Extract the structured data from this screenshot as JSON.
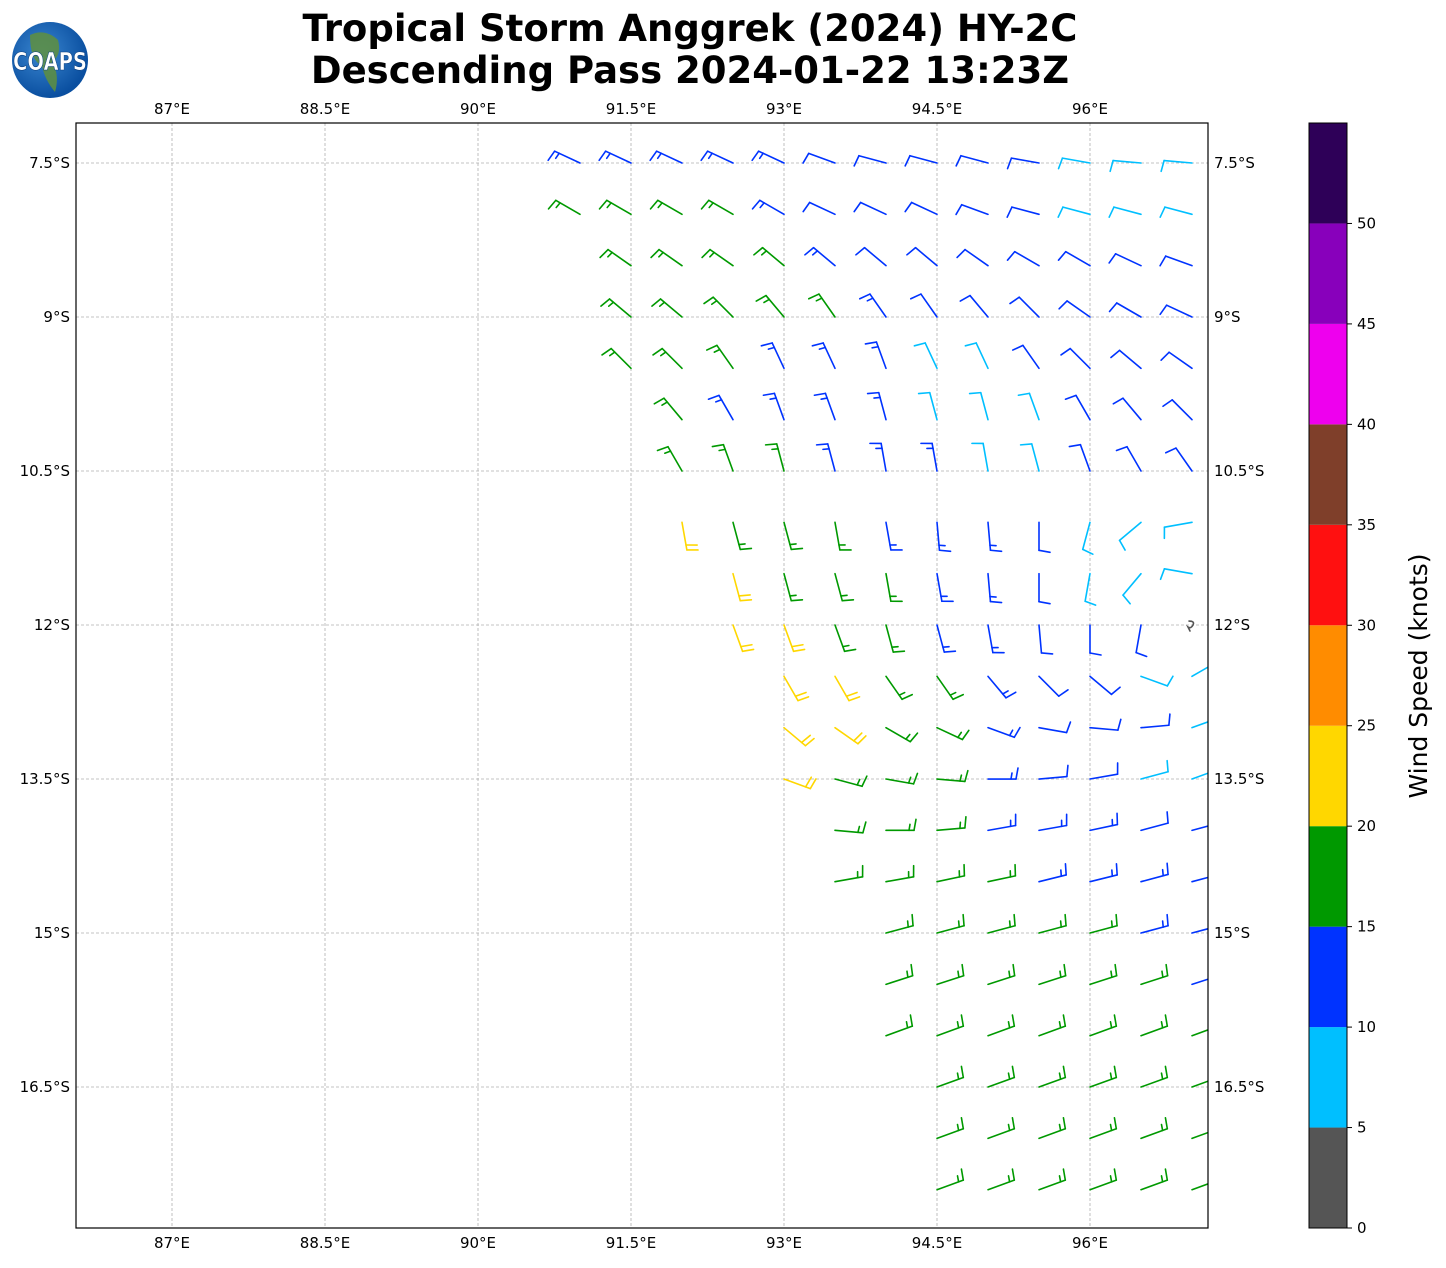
{
  "title": {
    "line1": "Tropical Storm Anggrek (2024) HY-2C",
    "line2": "Descending Pass 2024-01-22 13:23Z"
  },
  "logo": {
    "text": "COAPS"
  },
  "map": {
    "lon_ticks": [
      87,
      88.5,
      90,
      91.5,
      93,
      94.5,
      96
    ],
    "lon_labels": [
      "87°E",
      "88.5°E",
      "90°E",
      "91.5°E",
      "93°E",
      "94.5°E",
      "96°E"
    ],
    "lat_ticks": [
      -7.5,
      -9,
      -10.5,
      -12,
      -13.5,
      -15,
      -16.5
    ],
    "lat_labels": [
      "7.5°S",
      "9°S",
      "10.5°S",
      "12°S",
      "13.5°S",
      "15°S",
      "16.5°S"
    ],
    "extent": {
      "lon_min": 86.06,
      "lon_max": 97.16,
      "lat_min": -17.87,
      "lat_max": -7.11
    },
    "gridlines": true
  },
  "colorbar": {
    "label": "Wind Speed (knots)",
    "bounds": [
      0,
      5,
      10,
      15,
      20,
      25,
      30,
      35,
      40,
      45,
      50,
      55
    ],
    "tick_labels": [
      "0",
      "5",
      "10",
      "15",
      "20",
      "25",
      "30",
      "35",
      "40",
      "45",
      "50"
    ],
    "colors": [
      "#555555",
      "#00bfff",
      "#0033ff",
      "#009900",
      "#ffd700",
      "#ff8c00",
      "#ff1010",
      "#7f3f2a",
      "#ee00ee",
      "#8800bb",
      "#2e0058"
    ]
  },
  "chart_data": {
    "type": "wind_barbs",
    "units": "knots",
    "direction_convention": "degrees from which wind blows",
    "lon_step": 0.5,
    "rows": [
      {
        "lat": -7.5,
        "lon0": 91.0,
        "spd": [
          13,
          13,
          13,
          13,
          13,
          12,
          12,
          12,
          12,
          12,
          8,
          8,
          8
        ],
        "dir": [
          295,
          295,
          295,
          295,
          295,
          290,
          285,
          285,
          285,
          280,
          280,
          275,
          275
        ]
      },
      {
        "lat": -8.0,
        "lon0": 91.0,
        "spd": [
          16,
          16,
          16,
          16,
          13,
          12,
          12,
          12,
          12,
          12,
          9,
          8,
          8
        ],
        "dir": [
          300,
          300,
          300,
          300,
          300,
          295,
          295,
          295,
          290,
          285,
          285,
          285,
          285
        ]
      },
      {
        "lat": -8.5,
        "lon0": 91.5,
        "spd": [
          17,
          17,
          17,
          17,
          13,
          12,
          12,
          12,
          12,
          12,
          11,
          11
        ],
        "dir": [
          305,
          305,
          305,
          310,
          310,
          310,
          310,
          305,
          300,
          300,
          295,
          290
        ]
      },
      {
        "lat": -9.0,
        "lon0": 91.5,
        "spd": [
          17,
          17,
          17,
          16,
          16,
          13,
          12,
          12,
          12,
          12,
          11,
          11
        ],
        "dir": [
          310,
          310,
          315,
          320,
          325,
          325,
          325,
          320,
          315,
          305,
          300,
          295
        ]
      },
      {
        "lat": -9.5,
        "lon0": 91.5,
        "spd": [
          17,
          17,
          16,
          13,
          13,
          13,
          8,
          8,
          12,
          12,
          12,
          12
        ],
        "dir": [
          315,
          315,
          325,
          335,
          335,
          340,
          335,
          335,
          325,
          315,
          310,
          305
        ]
      },
      {
        "lat": -10.0,
        "lon0": 92.0,
        "spd": [
          16,
          13,
          13,
          13,
          13,
          8,
          8,
          9,
          12,
          12,
          12
        ],
        "dir": [
          320,
          330,
          340,
          340,
          345,
          345,
          345,
          340,
          330,
          320,
          315
        ]
      },
      {
        "lat": -10.5,
        "lon0": 92.0,
        "spd": [
          17,
          17,
          16,
          13,
          13,
          13,
          8,
          8,
          12,
          12,
          12
        ],
        "dir": [
          330,
          340,
          345,
          345,
          350,
          350,
          350,
          345,
          340,
          330,
          325
        ]
      },
      {
        "lat": -11.0,
        "lon0": 92.0,
        "spd": [
          22,
          17,
          17,
          16,
          13,
          13,
          13,
          12,
          9,
          8,
          8
        ],
        "dir": [
          170,
          165,
          165,
          170,
          170,
          175,
          175,
          180,
          195,
          230,
          260
        ]
      },
      {
        "lat": -11.5,
        "lon0": 92.5,
        "spd": [
          22,
          17,
          17,
          16,
          13,
          13,
          12,
          9,
          8,
          8
        ],
        "dir": [
          165,
          165,
          165,
          170,
          170,
          175,
          180,
          190,
          220,
          280
        ]
      },
      {
        "lat": -12.0,
        "lon0": 92.5,
        "spd": [
          22,
          22,
          17,
          16,
          13,
          13,
          12,
          12,
          11,
          4
        ],
        "dir": [
          160,
          160,
          160,
          165,
          165,
          170,
          175,
          180,
          190,
          0
        ]
      },
      {
        "lat": -12.5,
        "lon0": 93.0,
        "spd": [
          22,
          22,
          17,
          16,
          13,
          12,
          12,
          8,
          8
        ],
        "dir": [
          150,
          150,
          145,
          145,
          140,
          135,
          130,
          110,
          60
        ]
      },
      {
        "lat": -13.0,
        "lon0": 93.0,
        "spd": [
          22,
          21,
          17,
          16,
          13,
          12,
          12,
          12,
          8
        ],
        "dir": [
          130,
          125,
          120,
          115,
          110,
          100,
          95,
          85,
          70
        ]
      },
      {
        "lat": -13.5,
        "lon0": 93.0,
        "spd": [
          22,
          17,
          17,
          16,
          13,
          12,
          12,
          9,
          8
        ],
        "dir": [
          110,
          105,
          100,
          95,
          90,
          85,
          80,
          75,
          70
        ]
      },
      {
        "lat": -14.0,
        "lon0": 93.5,
        "spd": [
          17,
          17,
          16,
          13,
          13,
          13,
          12,
          12
        ],
        "dir": [
          95,
          90,
          85,
          80,
          80,
          78,
          75,
          75
        ]
      },
      {
        "lat": -14.5,
        "lon0": 93.5,
        "spd": [
          17,
          17,
          17,
          16,
          13,
          13,
          13,
          13
        ],
        "dir": [
          80,
          80,
          78,
          78,
          76,
          76,
          75,
          75
        ]
      },
      {
        "lat": -15.0,
        "lon0": 94.0,
        "spd": [
          17,
          17,
          17,
          17,
          16,
          13,
          13
        ],
        "dir": [
          75,
          75,
          75,
          75,
          75,
          75,
          75
        ]
      },
      {
        "lat": -15.5,
        "lon0": 94.0,
        "spd": [
          17,
          17,
          17,
          17,
          17,
          16,
          13
        ],
        "dir": [
          72,
          72,
          72,
          72,
          72,
          72,
          72
        ]
      },
      {
        "lat": -16.0,
        "lon0": 94.0,
        "spd": [
          17,
          17,
          17,
          17,
          17,
          17,
          16
        ],
        "dir": [
          70,
          70,
          70,
          70,
          70,
          70,
          70
        ]
      },
      {
        "lat": -16.5,
        "lon0": 94.5,
        "spd": [
          17,
          17,
          17,
          17,
          17,
          17
        ],
        "dir": [
          70,
          70,
          70,
          70,
          70,
          70
        ]
      },
      {
        "lat": -17.0,
        "lon0": 94.5,
        "spd": [
          17,
          17,
          17,
          17,
          17,
          17
        ],
        "dir": [
          70,
          70,
          70,
          70,
          70,
          70
        ]
      },
      {
        "lat": -17.5,
        "lon0": 94.5,
        "spd": [
          17,
          17,
          17,
          17,
          17,
          17
        ],
        "dir": [
          70,
          70,
          70,
          70,
          70,
          70
        ]
      }
    ]
  }
}
